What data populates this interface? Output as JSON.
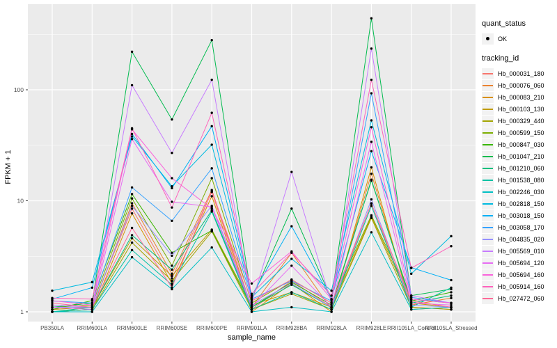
{
  "figure": {
    "y_axis_title": "FPKM + 1",
    "x_axis_title": "sample_name"
  },
  "legend": {
    "quant_status_title": "quant_status",
    "quant_status_items": [
      {
        "label": "OK"
      }
    ],
    "tracking_id_title": "tracking_id"
  },
  "colors": {
    "panel_bg": "#EBEBEB",
    "grid": "#FFFFFF",
    "point": "#000000",
    "tick_text": "#4D4D4D",
    "tick_mark": "#333333",
    "legend_key_bg": "#F2F2F2"
  },
  "chart_data": {
    "type": "line",
    "title": "",
    "xlabel": "sample_name",
    "ylabel": "FPKM + 1",
    "y_scale": "log10",
    "ylim": [
      1,
      500
    ],
    "y_major_ticks": [
      1,
      10,
      100
    ],
    "y_minor_ticks": [
      3.162,
      31.62,
      316.2
    ],
    "grid": true,
    "legend_position": "right",
    "quant_status": "OK",
    "categories": [
      "PB350LA",
      "RRIM600LA",
      "RRIM600LE",
      "RRIM600SE",
      "RRIM600PE",
      "RRIM901LA",
      "RRIM928BA",
      "RRIM928LA",
      "RRIM928LE",
      "RRII105LA_Control",
      "RRII105LA_Stressed"
    ],
    "series": [
      {
        "name": "Hb_000031_180",
        "color": "#F8766D",
        "values": [
          1.05,
          1.1,
          8.5,
          2.0,
          12,
          1.05,
          1.9,
          1.1,
          9.5,
          1.1,
          1.05
        ]
      },
      {
        "name": "Hb_000076_060",
        "color": "#EA8331",
        "values": [
          1.0,
          1.05,
          9.5,
          2.2,
          12.5,
          1.1,
          3.4,
          1.05,
          17.5,
          1.15,
          1.33
        ]
      },
      {
        "name": "Hb_000083_210",
        "color": "#D89000",
        "values": [
          1.0,
          1.0,
          7.7,
          1.8,
          11,
          1.0,
          1.8,
          1.0,
          20,
          1.05,
          1.1
        ]
      },
      {
        "name": "Hb_000103_130",
        "color": "#C09B00",
        "values": [
          1.05,
          1.1,
          4.6,
          2.1,
          5.5,
          1.15,
          1.5,
          1.1,
          7.2,
          1.2,
          1.1
        ]
      },
      {
        "name": "Hb_000329_440",
        "color": "#A3A500",
        "values": [
          1.0,
          1.05,
          4.2,
          1.9,
          5.3,
          1.05,
          1.45,
          1.05,
          7.0,
          1.1,
          1.05
        ]
      },
      {
        "name": "Hb_000599_150",
        "color": "#7CAE00",
        "values": [
          1.1,
          1.15,
          10.5,
          2.6,
          16,
          1.2,
          1.95,
          1.2,
          7.4,
          1.3,
          1.2
        ]
      },
      {
        "name": "Hb_000847_030",
        "color": "#39B600",
        "values": [
          1.05,
          1.26,
          11.5,
          3.4,
          5.4,
          1.1,
          1.85,
          1.15,
          15.2,
          1.25,
          1.5
        ]
      },
      {
        "name": "Hb_001047_210",
        "color": "#00BB4E",
        "values": [
          1.1,
          1.2,
          220,
          54,
          280,
          1.3,
          8.5,
          1.3,
          440,
          1.4,
          1.6
        ]
      },
      {
        "name": "Hb_001210_060",
        "color": "#00BF7D",
        "values": [
          1.0,
          1.1,
          4.9,
          2.4,
          8.2,
          1.1,
          1.75,
          1.1,
          15.5,
          1.2,
          1.4
        ]
      },
      {
        "name": "Hb_001538_080",
        "color": "#00C1A3",
        "values": [
          1.0,
          1.05,
          3.6,
          1.75,
          8.0,
          1.05,
          1.5,
          1.05,
          9.0,
          1.1,
          1.65
        ]
      },
      {
        "name": "Hb_002246_030",
        "color": "#00BFC4",
        "values": [
          1.0,
          1.0,
          3.1,
          1.6,
          3.8,
          1.0,
          1.1,
          1.0,
          5.2,
          1.05,
          1.1
        ]
      },
      {
        "name": "Hb_002818_150",
        "color": "#00BAE0",
        "values": [
          1.55,
          1.85,
          38,
          13.5,
          32,
          1.35,
          3.0,
          1.55,
          53,
          2.2,
          4.8
        ]
      },
      {
        "name": "Hb_003018_150",
        "color": "#00B0F6",
        "values": [
          1.3,
          1.65,
          40,
          13,
          47,
          1.4,
          5.9,
          1.3,
          28,
          2.5,
          1.93
        ]
      },
      {
        "name": "Hb_003058_170",
        "color": "#35A2FF",
        "values": [
          1.25,
          1.2,
          13.2,
          6.6,
          19.6,
          1.3,
          1.9,
          1.25,
          93,
          1.35,
          1.2
        ]
      },
      {
        "name": "Hb_004835_020",
        "color": "#9590FF",
        "values": [
          1.1,
          1.1,
          9.0,
          3.2,
          9.0,
          1.15,
          1.8,
          1.1,
          10.3,
          1.15,
          1.1
        ]
      },
      {
        "name": "Hb_005569_010",
        "color": "#C77CFF",
        "values": [
          1.15,
          1.1,
          110,
          27,
          123,
          1.2,
          18.2,
          1.2,
          235,
          1.4,
          1.2
        ]
      },
      {
        "name": "Hb_005694_120",
        "color": "#E76BF3",
        "values": [
          1.1,
          1.05,
          36,
          9.8,
          8.8,
          1.1,
          2.6,
          1.1,
          34,
          1.2,
          1.15
        ]
      },
      {
        "name": "Hb_005694_160",
        "color": "#FA62DB",
        "values": [
          1.26,
          1.15,
          44,
          16,
          8.5,
          1.8,
          3.5,
          1.3,
          46,
          1.3,
          1.2
        ]
      },
      {
        "name": "Hb_005914_160",
        "color": "#FF62BC",
        "values": [
          1.33,
          1.3,
          45,
          8.7,
          62,
          1.45,
          3.4,
          1.4,
          123,
          2.48,
          3.9
        ]
      },
      {
        "name": "Hb_027472_060",
        "color": "#FF6A98",
        "values": [
          1.2,
          1.1,
          5.7,
          1.66,
          12.2,
          1.25,
          1.95,
          1.2,
          9.4,
          1.25,
          1.1
        ]
      }
    ]
  }
}
